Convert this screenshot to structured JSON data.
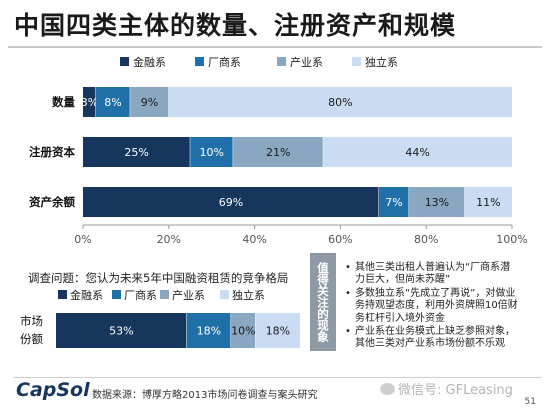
{
  "title": "中国四类主体的数量、注册资产和规模",
  "colors": {
    "finance": "#17365d",
    "manufacturer": "#1f6fa8",
    "industry": "#8aa7c2",
    "independent": "#c9dcf2"
  },
  "chart_data": [
    {
      "type": "bar",
      "orientation": "horizontal",
      "stacked": true,
      "legend_position": "top",
      "categories": [
        "数量",
        "注册资本",
        "资产余额"
      ],
      "series": [
        {
          "name": "金融系",
          "values": [
            3,
            25,
            69
          ],
          "labels": [
            "3%",
            "25%",
            "69%"
          ]
        },
        {
          "name": "厂商系",
          "values": [
            8,
            10,
            7
          ],
          "labels": [
            "8%",
            "10%",
            "7%"
          ]
        },
        {
          "name": "产业系",
          "values": [
            9,
            21,
            13
          ],
          "labels": [
            "9%",
            "21%",
            "13%"
          ]
        },
        {
          "name": "独立系",
          "values": [
            80,
            44,
            11
          ],
          "labels": [
            "80%",
            "44%",
            "11%"
          ]
        }
      ],
      "xlim": [
        0,
        100
      ],
      "xticks": [
        "0%",
        "20%",
        "40%",
        "60%",
        "80%",
        "100%"
      ],
      "grid": false
    },
    {
      "type": "bar",
      "orientation": "horizontal",
      "stacked": true,
      "legend_position": "top",
      "categories": [
        "市场份额"
      ],
      "series": [
        {
          "name": "金融系",
          "values": [
            53
          ],
          "labels": [
            "53%"
          ]
        },
        {
          "name": "厂商系",
          "values": [
            18
          ],
          "labels": [
            "18%"
          ]
        },
        {
          "name": "产业系",
          "values": [
            10
          ],
          "labels": [
            "10%"
          ]
        },
        {
          "name": "独立系",
          "values": [
            18
          ],
          "labels": [
            "18%"
          ]
        }
      ],
      "xlim": [
        0,
        99
      ]
    }
  ],
  "survey_question": "调查问题：您认为未来5年中国融资租赁的竞争格局",
  "observation_label": "值得关注的现象",
  "notes": [
    "其他三类出租人普遍认为“厂商系潜力巨大，但尚未苏醒”",
    "多数独立系“先成立了再说”，对做业务持观望态度，利用外资牌照10倍财务杠杆引入境外资金",
    "产业系在业务模式上缺乏参照对象，其他三类对产业系市场份额不乐观"
  ],
  "footer": {
    "logo": "CapSol",
    "source": "数据来源：博厚方略2013市场问卷调查与案头研究",
    "watermark": "微信号: GFLeasing",
    "page": "51"
  }
}
